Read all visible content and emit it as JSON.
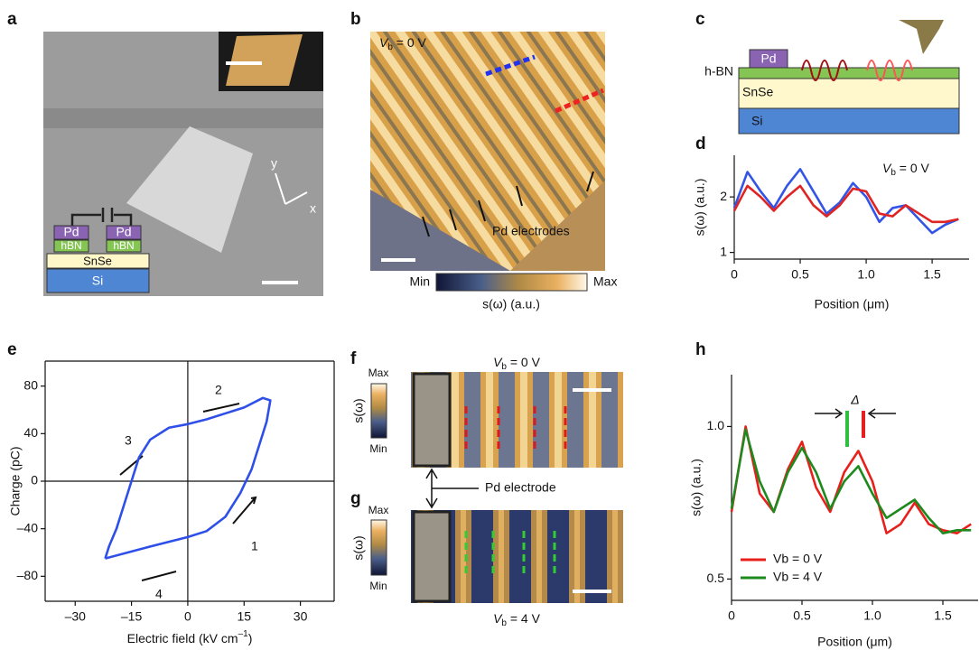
{
  "panel_labels": [
    "a",
    "b",
    "c",
    "d",
    "e",
    "f",
    "g",
    "h"
  ],
  "panel_a": {
    "layers": [
      "Pd",
      "Pd",
      "hBN",
      "hBN",
      "SnSe",
      "Si"
    ],
    "axes": [
      "y",
      "x"
    ]
  },
  "panel_b": {
    "bias": {
      "symbol": "V",
      "subscript": "b",
      "text": " = 0 V"
    },
    "label": "Pd electrodes",
    "colorbar": {
      "min": "Min",
      "max": "Max",
      "label": "s(ω) (a.u.)"
    }
  },
  "panel_c": {
    "layers": [
      "Pd",
      "h-BN",
      "SnSe",
      "Si"
    ]
  },
  "panel_f": {
    "bias": {
      "symbol": "V",
      "subscript": "b",
      "text": " = 0 V"
    },
    "colorbar": {
      "max": "Max",
      "min": "Min",
      "label": "s(ω)"
    }
  },
  "panel_g": {
    "bias": {
      "symbol": "V",
      "subscript": "b",
      "text": " = 4 V"
    },
    "colorbar": {
      "max": "Max",
      "min": "Min",
      "label": "s(ω)"
    }
  },
  "electrode_label": "Pd electrode",
  "chart_data": [
    {
      "type": "line",
      "xlabel": "Position (μm)",
      "ylabel": "s(ω) (a.u.)",
      "annotation": {
        "symbol": "V",
        "subscript": "b",
        "text": " = 0 V"
      },
      "x": [
        0,
        0.1,
        0.2,
        0.3,
        0.4,
        0.5,
        0.6,
        0.7,
        0.8,
        0.9,
        1.0,
        1.1,
        1.2,
        1.3,
        1.4,
        1.5,
        1.6,
        1.7
      ],
      "series": [
        {
          "color": "#3355e6",
          "values": [
            1.8,
            2.45,
            2.1,
            1.8,
            2.2,
            2.5,
            2.1,
            1.7,
            1.9,
            2.25,
            2.0,
            1.55,
            1.8,
            1.85,
            1.6,
            1.35,
            1.5,
            1.6
          ]
        },
        {
          "color": "#e02424",
          "values": [
            1.75,
            2.2,
            2.0,
            1.75,
            2.0,
            2.2,
            1.85,
            1.65,
            1.85,
            2.15,
            2.1,
            1.7,
            1.65,
            1.85,
            1.7,
            1.55,
            1.55,
            1.6
          ]
        }
      ],
      "xlim": [
        0,
        1.78
      ],
      "ylim": [
        0.88,
        2.75
      ],
      "xticks": [
        0,
        0.5,
        {
          "value": 1,
          "label": "1.0"
        },
        1.5
      ],
      "yticks": [
        1,
        2
      ]
    },
    {
      "type": "line",
      "xlabel": {
        "text": "Electric field (kV cm",
        "superscript": "–1",
        "end": ")"
      },
      "ylabel": "Charge (pC)",
      "annotations": [
        "1",
        "2",
        "3",
        "4"
      ],
      "series": [
        {
          "color": "#2e4fe8",
          "x": [
            -22,
            -10,
            0,
            5,
            10,
            14,
            17,
            19,
            21,
            22,
            20,
            15,
            5,
            0,
            -5,
            -10,
            -13,
            -15,
            -17,
            -19,
            -21,
            -22
          ],
          "values": [
            -65,
            -55,
            -47,
            -42,
            -30,
            -10,
            10,
            30,
            50,
            68,
            70,
            62,
            52,
            48,
            45,
            35,
            20,
            0,
            -20,
            -40,
            -55,
            -65
          ]
        }
      ],
      "xlim": [
        -38,
        39
      ],
      "ylim": [
        -101,
        101
      ],
      "xticks": [
        {
          "value": -30,
          "label": "–30"
        },
        {
          "value": -15,
          "label": "–15"
        },
        0,
        15,
        30
      ],
      "yticks": [
        {
          "value": -80,
          "label": "–80"
        },
        {
          "value": -40,
          "label": "–40"
        },
        0,
        40,
        80
      ]
    },
    {
      "type": "line",
      "xlabel": "Position (μm)",
      "ylabel": "s(ω) (a.u.)",
      "annotation": "Δ",
      "x": [
        0,
        0.1,
        0.2,
        0.3,
        0.4,
        0.5,
        0.6,
        0.7,
        0.8,
        0.9,
        1.0,
        1.1,
        1.2,
        1.3,
        1.4,
        1.5,
        1.6,
        1.7
      ],
      "series": [
        {
          "name": "Vb = 0 V",
          "color": "#e8201c",
          "values": [
            0.72,
            1.0,
            0.78,
            0.72,
            0.86,
            0.95,
            0.8,
            0.72,
            0.85,
            0.92,
            0.82,
            0.65,
            0.68,
            0.75,
            0.68,
            0.66,
            0.65,
            0.68
          ]
        },
        {
          "name": "Vb = 4 V",
          "color": "#1e8a1e",
          "values": [
            0.73,
            0.99,
            0.82,
            0.72,
            0.85,
            0.93,
            0.85,
            0.73,
            0.82,
            0.87,
            0.78,
            0.7,
            0.73,
            0.76,
            0.7,
            0.65,
            0.66,
            0.66
          ]
        }
      ],
      "xlim": [
        0,
        1.75
      ],
      "ylim": [
        0.43,
        1.17
      ],
      "xticks": [
        0,
        0.5,
        {
          "value": 1,
          "label": "1.0"
        },
        1.5
      ],
      "yticks": [
        0.5,
        {
          "value": 1,
          "label": "1.0"
        }
      ]
    }
  ]
}
